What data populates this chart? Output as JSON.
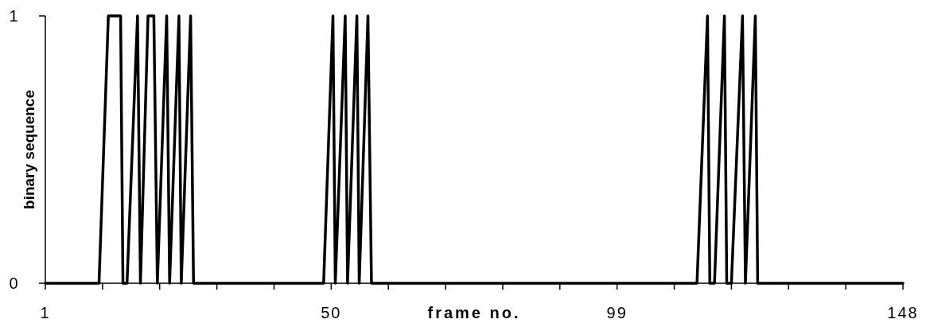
{
  "chart_data": {
    "type": "line",
    "xlabel": "frame no.",
    "ylabel": "binary sequence",
    "xlim": [
      1,
      148
    ],
    "ylim": [
      0,
      1
    ],
    "xticks": [
      1,
      {
        "value": 10.8,
        "label": null
      },
      {
        "value": 20.6,
        "label": null
      },
      {
        "value": 30.4,
        "label": null
      },
      {
        "value": 40.2,
        "label": null
      },
      50,
      {
        "value": 59.8,
        "label": null
      },
      {
        "value": 69.6,
        "label": null
      },
      {
        "value": 79.4,
        "label": null
      },
      {
        "value": 89.2,
        "label": null
      },
      99,
      {
        "value": 108.8,
        "label": null
      },
      {
        "value": 118.6,
        "label": null
      },
      {
        "value": 128.4,
        "label": null
      },
      {
        "value": 138.2,
        "label": null
      },
      148
    ],
    "yticks": [
      0,
      1
    ],
    "grid": false,
    "series": [
      {
        "color": "#000000",
        "x": [
          1,
          10.2,
          11.8,
          13.9,
          14.3,
          15.0,
          16.8,
          17.3,
          18.6,
          19.6,
          20.2,
          21.8,
          22.3,
          23.9,
          24.3,
          25.9,
          26.4,
          48.7,
          50.3,
          50.7,
          52.4,
          52.8,
          54.4,
          54.8,
          56.3,
          56.9,
          112.7,
          114.5,
          114.9,
          115.7,
          117.4,
          117.8,
          118.6,
          120.5,
          121.0,
          122.7,
          123.1,
          148
        ],
        "values": [
          0,
          0,
          1,
          1,
          0,
          0,
          1,
          0,
          1,
          1,
          0,
          1,
          0,
          1,
          0,
          1,
          0,
          0,
          1,
          0,
          1,
          0,
          1,
          0,
          1,
          0,
          0,
          1,
          0,
          0,
          1,
          0,
          0,
          1,
          0,
          1,
          0,
          0
        ]
      }
    ]
  }
}
